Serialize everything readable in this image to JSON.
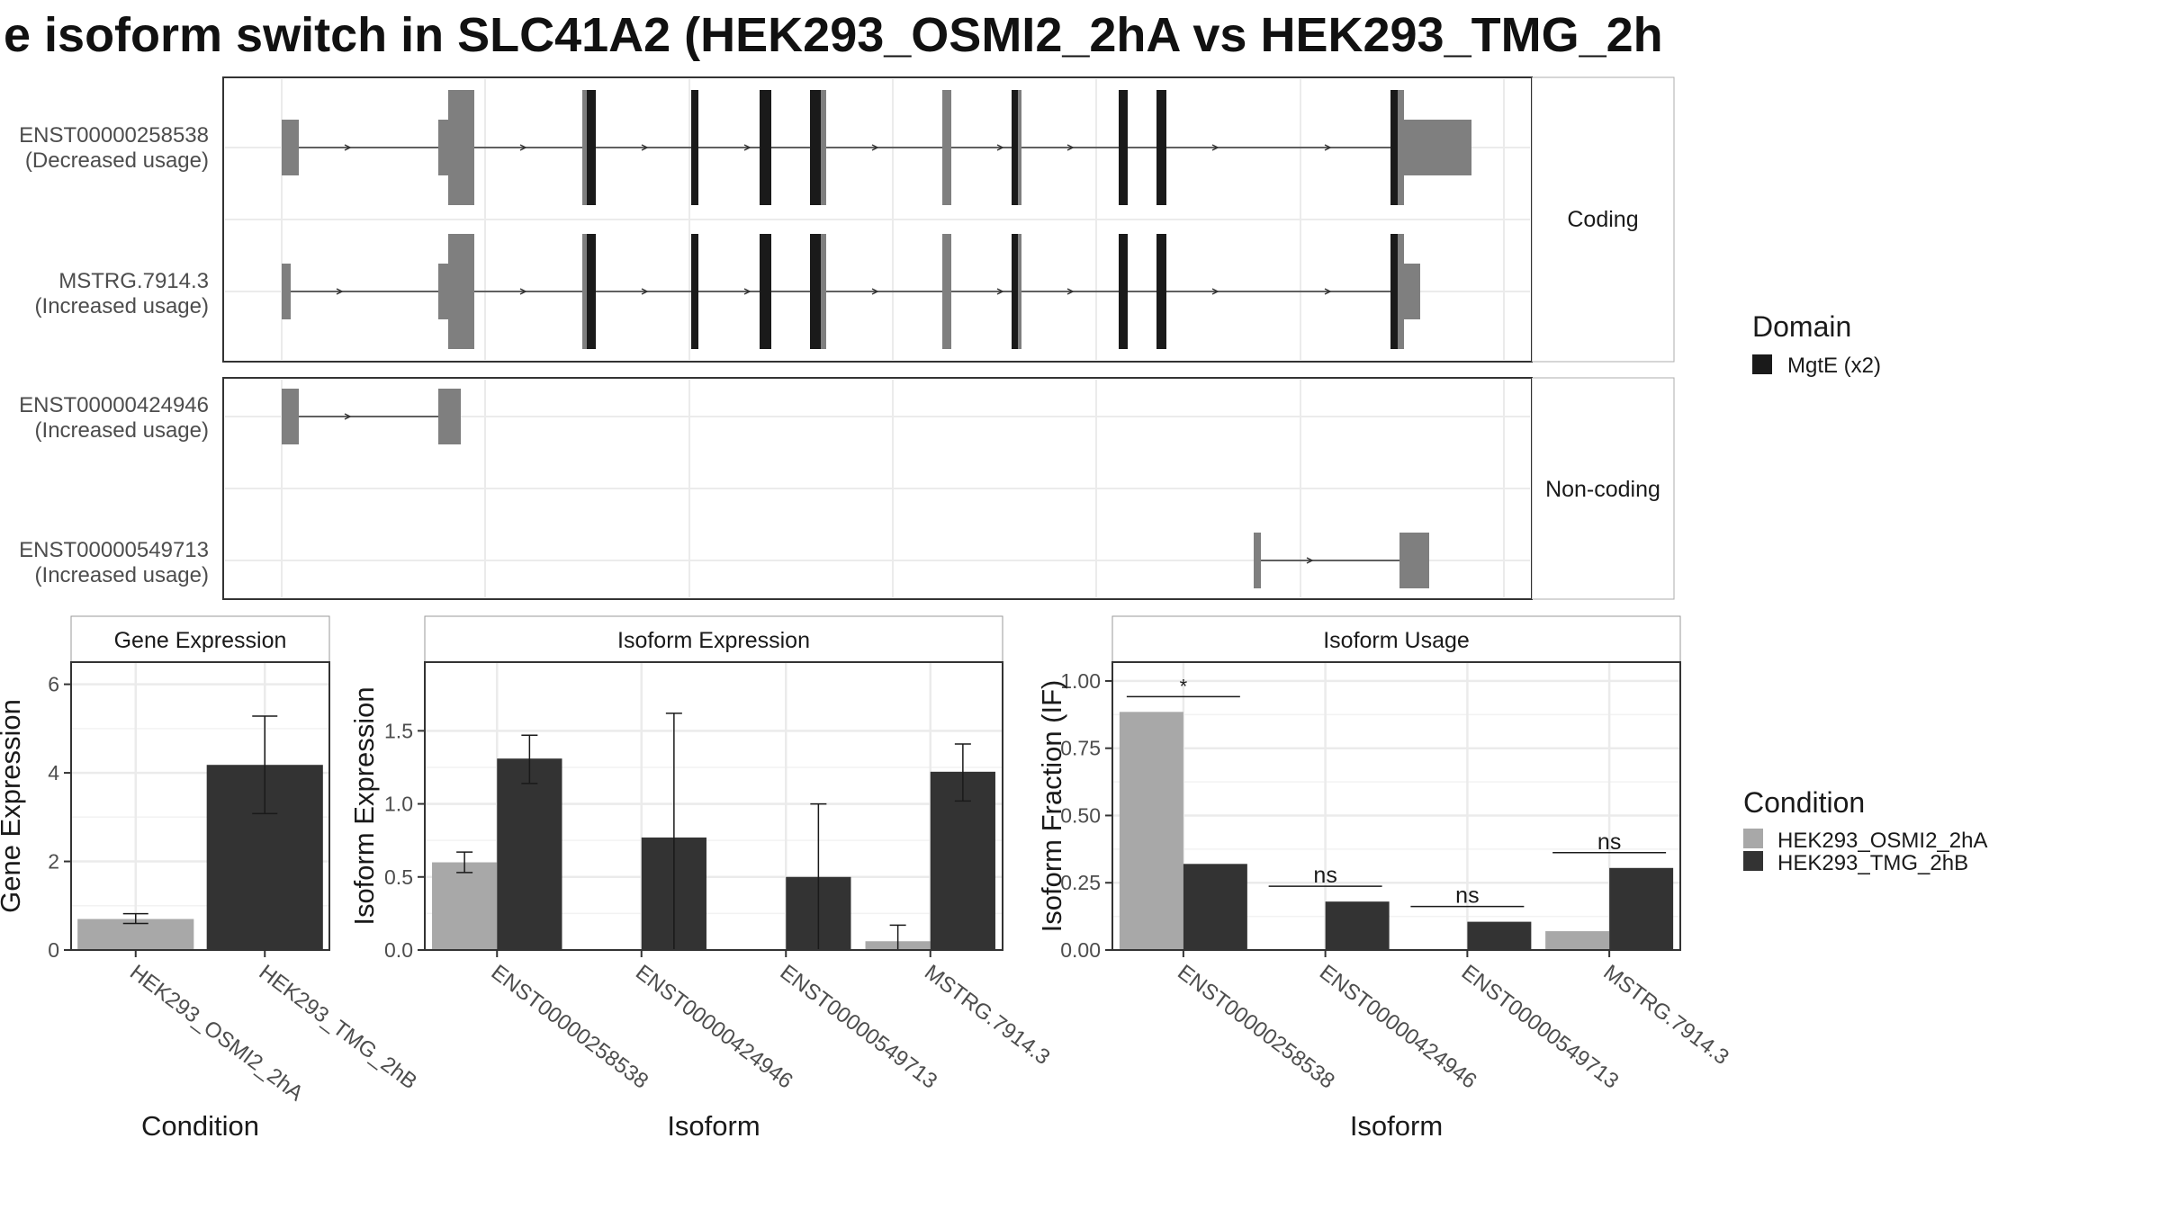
{
  "title": "e isoform switch in SLC41A2 (HEK293_OSMI2_2hA vs HEK293_TMG_2h",
  "colors": {
    "utr": "#7f7f7f",
    "cds": "#7f7f7f",
    "domain": "#1a1a1a",
    "cond_a": "#a8a8a8",
    "cond_b": "#333333",
    "grid": "#ebebeb",
    "frame": "#333333",
    "strip_bg": "#ffffff"
  },
  "structure": {
    "facets": [
      {
        "label": "Coding",
        "isoforms": [
          {
            "name": "ENST00000258538",
            "usage": "(Decreased usage)"
          },
          {
            "name": "MSTRG.7914.3",
            "usage": "(Increased usage)"
          }
        ]
      },
      {
        "label": "Non-coding",
        "isoforms": [
          {
            "name": "ENST00000424946",
            "usage": "(Increased usage)"
          },
          {
            "name": "ENST00000549713",
            "usage": "(Increased usage)"
          }
        ]
      }
    ],
    "legend": {
      "title": "Domain",
      "items": [
        {
          "label": "MgtE (x2)"
        }
      ]
    }
  },
  "chart_data": [
    {
      "type": "bar",
      "strip": "Gene Expression",
      "categories": [
        "HEK293_OSMI2_2hA",
        "HEK293_TMG_2hB"
      ],
      "values": [
        0.7,
        4.18
      ],
      "errors": [
        [
          0.6,
          0.82
        ],
        [
          3.08,
          5.28
        ]
      ],
      "xlabel": "Condition",
      "ylabel": "Gene Expression",
      "ylim": [
        0,
        6.5
      ],
      "yticks": [
        0,
        2,
        4,
        6
      ],
      "ytick_labels": [
        "0",
        "2",
        "4",
        "6"
      ],
      "grid": true
    },
    {
      "type": "bar",
      "strip": "Isoform Expression",
      "categories": [
        "ENST00000258538",
        "ENST00000424946",
        "ENST00000549713",
        "MSTRG.7914.3"
      ],
      "series": [
        {
          "name": "HEK293_OSMI2_2hA",
          "values": [
            0.6,
            0.0,
            0.0,
            0.06
          ],
          "errors": [
            [
              0.53,
              0.67
            ],
            null,
            null,
            [
              0.0,
              0.17
            ]
          ]
        },
        {
          "name": "HEK293_TMG_2hB",
          "values": [
            1.31,
            0.77,
            0.5,
            1.22
          ],
          "errors": [
            [
              1.14,
              1.47
            ],
            [
              0.0,
              1.62
            ],
            [
              0.0,
              1.0
            ],
            [
              1.02,
              1.41
            ]
          ]
        }
      ],
      "xlabel": "Isoform",
      "ylabel": "Isoform Expression",
      "ylim": [
        0,
        1.97
      ],
      "yticks": [
        0,
        0.5,
        1.0,
        1.5
      ],
      "ytick_labels": [
        "0.0",
        "0.5",
        "1.0",
        "1.5"
      ],
      "grid": true
    },
    {
      "type": "bar",
      "strip": "Isoform Usage",
      "categories": [
        "ENST00000258538",
        "ENST00000424946",
        "ENST00000549713",
        "MSTRG.7914.3"
      ],
      "series": [
        {
          "name": "HEK293_OSMI2_2hA",
          "values": [
            0.885,
            0.0,
            0.0,
            0.07
          ]
        },
        {
          "name": "HEK293_TMG_2hB",
          "values": [
            0.32,
            0.18,
            0.105,
            0.305
          ]
        }
      ],
      "significance": [
        "*",
        "ns",
        "ns",
        "ns"
      ],
      "xlabel": "Isoform",
      "ylabel": "Isoform Fraction (IF)",
      "ylim": [
        0,
        1.07
      ],
      "yticks": [
        0,
        0.25,
        0.5,
        0.75,
        1.0
      ],
      "ytick_labels": [
        "0.00",
        "0.25",
        "0.50",
        "0.75",
        "1.00"
      ],
      "grid": true
    }
  ],
  "condition_legend": {
    "title": "Condition",
    "items": [
      "HEK293_OSMI2_2hA",
      "HEK293_TMG_2hB"
    ]
  }
}
